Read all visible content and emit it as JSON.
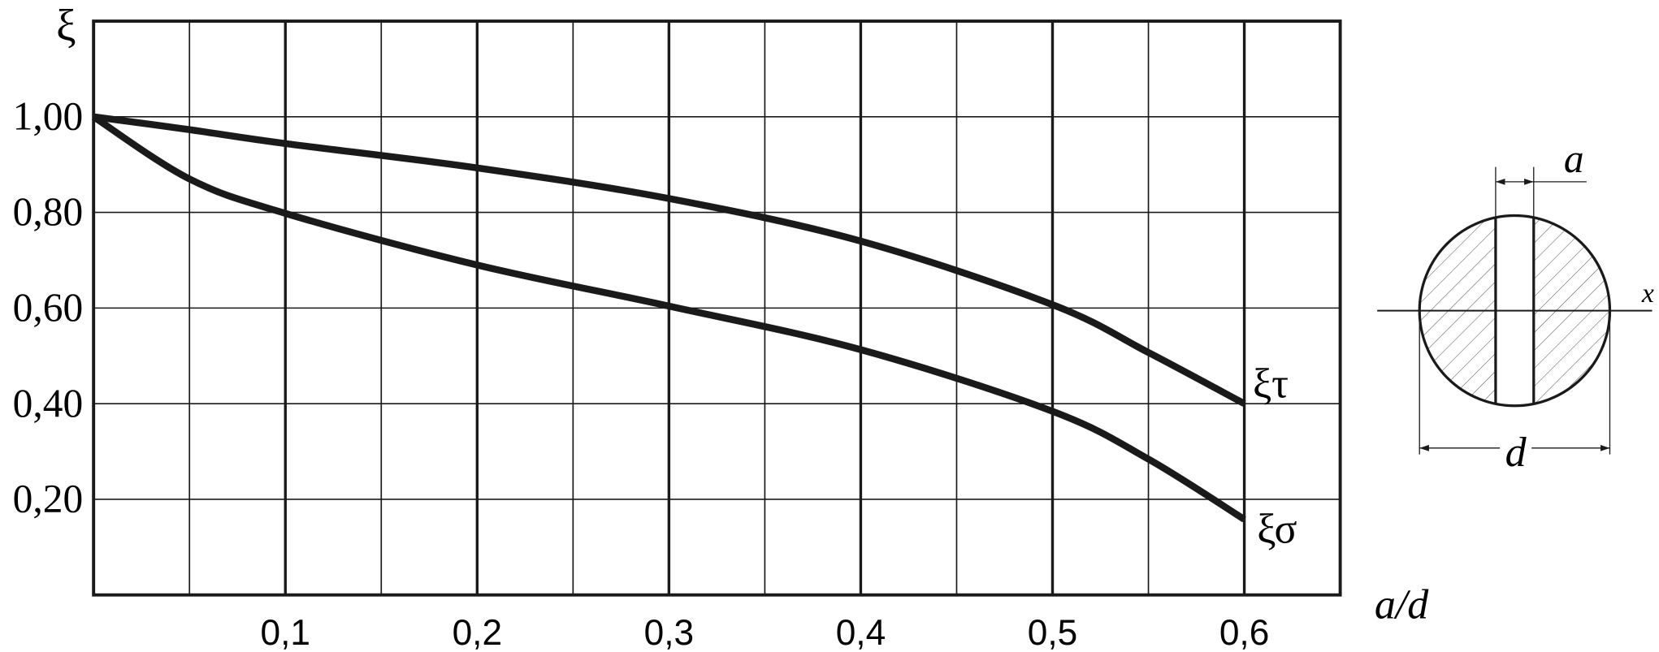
{
  "chart_data": {
    "type": "line",
    "ylabel": "ξ",
    "xlabel": "a/d",
    "x": [
      0,
      0.05,
      0.1,
      0.2,
      0.3,
      0.4,
      0.5,
      0.55,
      0.6
    ],
    "series": [
      {
        "name": "ξτ",
        "color": "#1a1a1a",
        "values": [
          1.0,
          0.973,
          0.944,
          0.893,
          0.829,
          0.74,
          0.607,
          0.507,
          0.4
        ]
      },
      {
        "name": "ξσ",
        "color": "#1a1a1a",
        "values": [
          1.0,
          0.87,
          0.798,
          0.69,
          0.604,
          0.513,
          0.384,
          0.284,
          0.158
        ]
      }
    ],
    "xlim": [
      0,
      0.65
    ],
    "ylim": [
      0,
      1.2
    ],
    "xticks": [
      {
        "value": 0.1,
        "label": "0,1"
      },
      {
        "value": 0.2,
        "label": "0,2"
      },
      {
        "value": 0.3,
        "label": "0,3"
      },
      {
        "value": 0.4,
        "label": "0,4"
      },
      {
        "value": 0.5,
        "label": "0,5"
      },
      {
        "value": 0.6,
        "label": "0,6"
      }
    ],
    "xminorticks": [
      0.05,
      0.15,
      0.25,
      0.35,
      0.45,
      0.55
    ],
    "yticks": [
      {
        "value": 0.2,
        "label": "0,20"
      },
      {
        "value": 0.4,
        "label": "0,40"
      },
      {
        "value": 0.6,
        "label": "0,60"
      },
      {
        "value": 0.8,
        "label": "0,80"
      },
      {
        "value": 1.0,
        "label": "1,00"
      }
    ],
    "grid": true
  },
  "diagram": {
    "a_label": "a",
    "d_label": "d",
    "x_label": "x"
  }
}
